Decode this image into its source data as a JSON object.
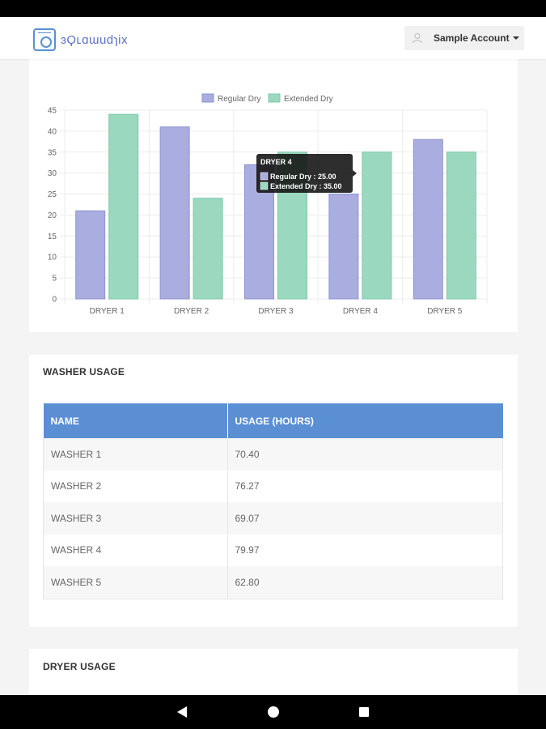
{
  "header": {
    "logo_text": "ɜϘʟɑɯudɿix",
    "account_label": "Sample Account"
  },
  "colors": {
    "regular": "#a9addf",
    "extended": "#9ad8bf",
    "header_blue": "#5b8fd4"
  },
  "chart_data": {
    "type": "bar",
    "categories": [
      "DRYER 1",
      "DRYER 2",
      "DRYER 3",
      "DRYER 4",
      "DRYER 5"
    ],
    "series": [
      {
        "name": "Regular Dry",
        "values": [
          21,
          41,
          32,
          25,
          38
        ]
      },
      {
        "name": "Extended Dry",
        "values": [
          44,
          24,
          35,
          35,
          35
        ]
      }
    ],
    "yticks": [
      "0",
      "5",
      "10",
      "15",
      "20",
      "25",
      "30",
      "35",
      "40",
      "45"
    ],
    "ylim": [
      0,
      45
    ],
    "grid": true,
    "legend": "top-center",
    "tooltip": {
      "title": "DRYER 4",
      "lines": [
        "Regular Dry : 25.00",
        "Extended Dry : 35.00"
      ]
    }
  },
  "washer": {
    "title": "WASHER USAGE",
    "headers": [
      "NAME",
      "USAGE (HOURS)"
    ],
    "rows": [
      [
        "WASHER 1",
        "70.40"
      ],
      [
        "WASHER 2",
        "76.27"
      ],
      [
        "WASHER 3",
        "69.07"
      ],
      [
        "WASHER 4",
        "79.97"
      ],
      [
        "WASHER 5",
        "62.80"
      ]
    ]
  },
  "dryer": {
    "title": "DRYER USAGE"
  }
}
